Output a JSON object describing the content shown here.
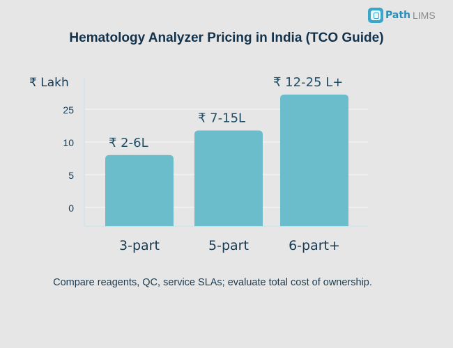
{
  "brand": {
    "name_bold": "Path",
    "name_light": "LIMS",
    "icon": "microscope-icon"
  },
  "title": "Hematology Analyzer Pricing in India (TCO Guide)",
  "caption": "Compare reagents, QC, service SLAs; evaluate total cost of ownership.",
  "colors": {
    "bar": "#6cbdcb",
    "text": "#163a52",
    "grid": "#f2f2f2",
    "axis": "#cfe3ea"
  },
  "chart_data": {
    "type": "bar",
    "title": "Hematology Analyzer Pricing in India (TCO Guide)",
    "ylabel": "₹ Lakh",
    "xlabel": "",
    "yticks": [
      "0",
      "5",
      "10",
      "25"
    ],
    "categories": [
      "3-part",
      "5-part",
      "6-part+"
    ],
    "data_labels": [
      "₹ 2-6L",
      "₹ 7-15L",
      "₹ 12-25 L+"
    ],
    "ranges": [
      [
        2,
        6
      ],
      [
        7,
        15
      ],
      [
        12,
        25
      ]
    ],
    "tick_index_levels": [
      1.6,
      2.35,
      3.45
    ],
    "grid": true,
    "legend": "none"
  }
}
